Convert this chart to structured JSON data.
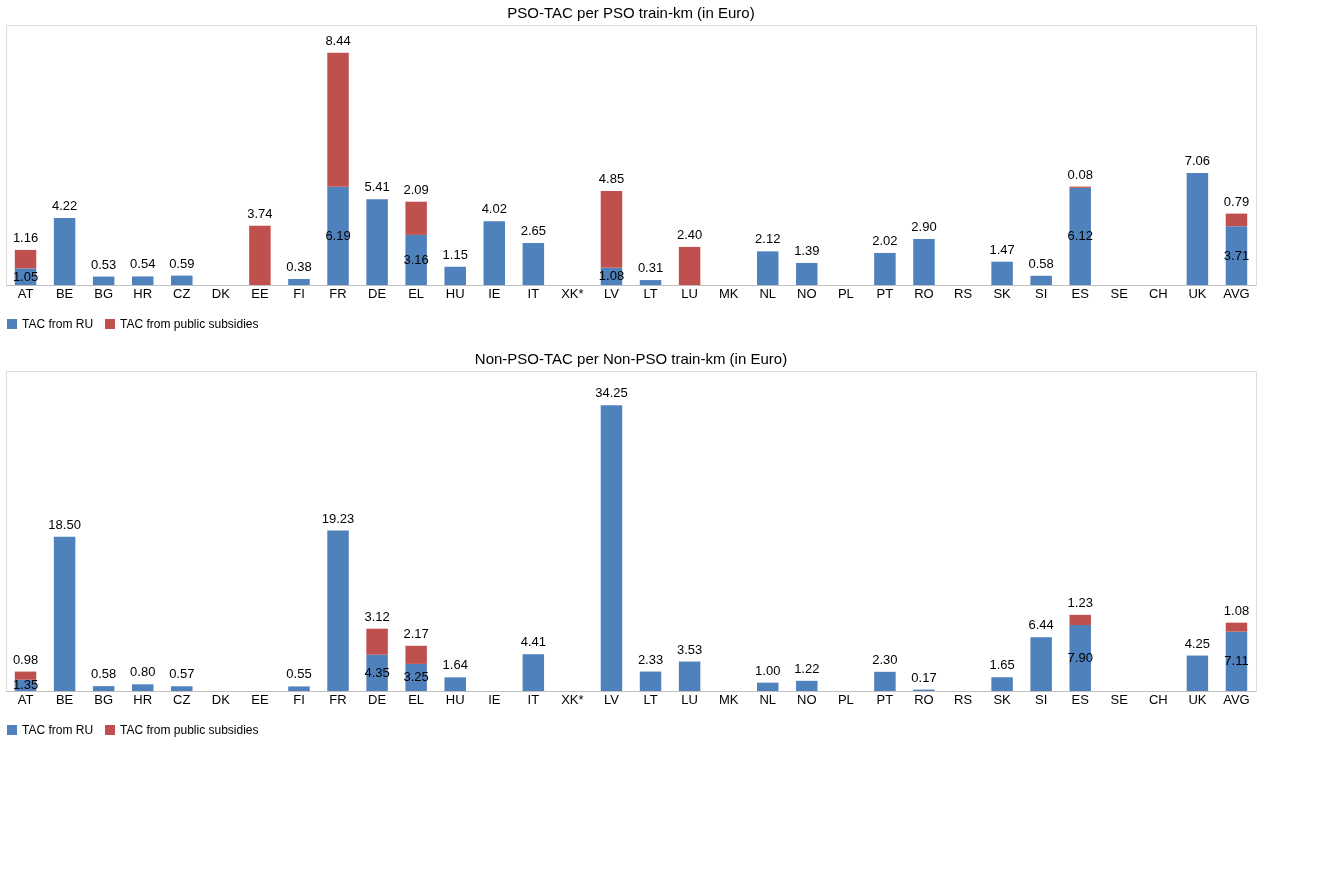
{
  "chart_data": [
    {
      "type": "bar",
      "stacked": true,
      "title": "PSO-TAC per PSO train-km (in Euro)",
      "categories": [
        "AT",
        "BE",
        "BG",
        "HR",
        "CZ",
        "DK",
        "EE",
        "FI",
        "FR",
        "DE",
        "EL",
        "HU",
        "IE",
        "IT",
        "XK*",
        "LV",
        "LT",
        "LU",
        "MK",
        "NL",
        "NO",
        "PL",
        "PT",
        "RO",
        "RS",
        "SK",
        "SI",
        "ES",
        "SE",
        "CH",
        "UK",
        "AVG"
      ],
      "series": [
        {
          "name": "TAC from RU",
          "color": "#4f81bd",
          "values": [
            1.05,
            4.22,
            0.53,
            0.54,
            0.59,
            null,
            null,
            0.38,
            6.19,
            5.41,
            3.16,
            1.15,
            4.02,
            2.65,
            null,
            1.08,
            0.31,
            null,
            null,
            2.12,
            1.39,
            null,
            2.02,
            2.9,
            null,
            1.47,
            0.58,
            6.12,
            null,
            null,
            7.06,
            3.71
          ],
          "value_labels": [
            "1.05",
            "4.22",
            "0.53",
            "0.54",
            "0.59",
            null,
            null,
            "0.38",
            "6.19",
            "5.41",
            "3.16",
            "1.15",
            "4.02",
            "2.65",
            null,
            "1.08",
            "0.31",
            null,
            null,
            "2.12",
            "1.39",
            null,
            "2.02",
            "2.90",
            null,
            "1.47",
            "0.58",
            "6.12",
            null,
            null,
            "7.06",
            "3.71"
          ]
        },
        {
          "name": "TAC from public subsidies",
          "color": "#c0504d",
          "values": [
            1.16,
            null,
            null,
            null,
            null,
            null,
            3.74,
            null,
            8.44,
            null,
            2.09,
            null,
            null,
            null,
            null,
            4.85,
            null,
            2.4,
            null,
            null,
            null,
            null,
            null,
            null,
            null,
            null,
            null,
            0.08,
            null,
            null,
            null,
            0.79
          ],
          "value_labels": [
            "1.16",
            null,
            null,
            null,
            null,
            null,
            "3.74",
            null,
            "8.44",
            null,
            "2.09",
            null,
            null,
            null,
            null,
            "4.85",
            null,
            "2.40",
            null,
            null,
            null,
            null,
            null,
            null,
            null,
            null,
            null,
            "0.08",
            null,
            null,
            null,
            "0.79"
          ]
        }
      ],
      "legend": "bottom"
    },
    {
      "type": "bar",
      "stacked": true,
      "title": "Non-PSO-TAC per Non-PSO train-km (in Euro)",
      "categories": [
        "AT",
        "BE",
        "BG",
        "HR",
        "CZ",
        "DK",
        "EE",
        "FI",
        "FR",
        "DE",
        "EL",
        "HU",
        "IE",
        "IT",
        "XK*",
        "LV",
        "LT",
        "LU",
        "MK",
        "NL",
        "NO",
        "PL",
        "PT",
        "RO",
        "RS",
        "SK",
        "SI",
        "ES",
        "SE",
        "CH",
        "UK",
        "AVG"
      ],
      "series": [
        {
          "name": "TAC from RU",
          "color": "#4f81bd",
          "values": [
            1.35,
            18.5,
            0.58,
            0.8,
            0.57,
            null,
            null,
            0.55,
            19.23,
            4.35,
            3.25,
            1.64,
            null,
            4.41,
            null,
            34.25,
            2.33,
            3.53,
            null,
            1.0,
            1.22,
            null,
            2.3,
            0.17,
            null,
            1.65,
            6.44,
            7.9,
            null,
            null,
            4.25,
            7.11
          ],
          "value_labels": [
            "1.35",
            "18.50",
            "0.58",
            "0.80",
            "0.57",
            null,
            null,
            "0.55",
            "19.23",
            "4.35",
            "3.25",
            "1.64",
            null,
            "4.41",
            null,
            "34.25",
            "2.33",
            "3.53",
            null,
            "1.00",
            "1.22",
            null,
            "2.30",
            "0.17",
            null,
            "1.65",
            "6.44",
            "7.90",
            null,
            null,
            "4.25",
            "7.11"
          ]
        },
        {
          "name": "TAC from public subsidies",
          "color": "#c0504d",
          "values": [
            0.98,
            null,
            null,
            null,
            null,
            null,
            null,
            null,
            null,
            3.12,
            2.17,
            null,
            null,
            null,
            null,
            null,
            null,
            null,
            null,
            null,
            null,
            null,
            null,
            null,
            null,
            null,
            null,
            1.23,
            null,
            null,
            null,
            1.08
          ],
          "value_labels": [
            "0.98",
            null,
            null,
            null,
            null,
            null,
            null,
            null,
            null,
            "3.12",
            "2.17",
            null,
            null,
            null,
            null,
            null,
            null,
            null,
            null,
            null,
            null,
            null,
            null,
            null,
            null,
            null,
            null,
            "1.23",
            null,
            null,
            null,
            "1.08"
          ]
        }
      ],
      "legend": "bottom"
    }
  ]
}
